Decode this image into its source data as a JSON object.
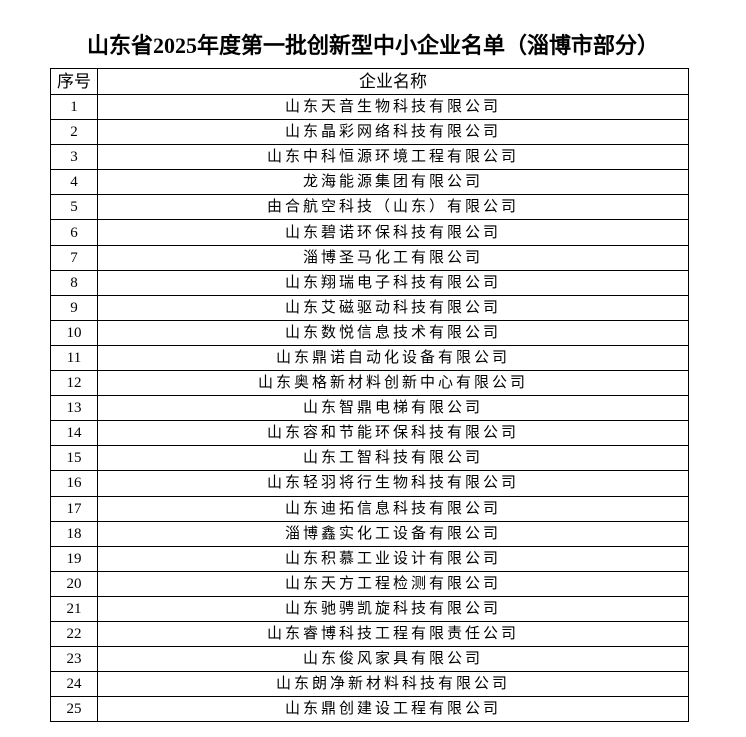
{
  "title": "山东省2025年度第一批创新型中小企业名单（淄博市部分）",
  "table": {
    "headers": [
      "序号",
      "企业名称"
    ],
    "rows": [
      {
        "no": "1",
        "name": "山东天音生物科技有限公司"
      },
      {
        "no": "2",
        "name": "山东晶彩网络科技有限公司"
      },
      {
        "no": "3",
        "name": "山东中科恒源环境工程有限公司"
      },
      {
        "no": "4",
        "name": "龙海能源集团有限公司"
      },
      {
        "no": "5",
        "name": "由合航空科技（山东）有限公司"
      },
      {
        "no": "6",
        "name": "山东碧诺环保科技有限公司"
      },
      {
        "no": "7",
        "name": "淄博圣马化工有限公司"
      },
      {
        "no": "8",
        "name": "山东翔瑞电子科技有限公司"
      },
      {
        "no": "9",
        "name": "山东艾磁驱动科技有限公司"
      },
      {
        "no": "10",
        "name": "山东数悦信息技术有限公司"
      },
      {
        "no": "11",
        "name": "山东鼎诺自动化设备有限公司"
      },
      {
        "no": "12",
        "name": "山东奥格新材料创新中心有限公司"
      },
      {
        "no": "13",
        "name": "山东智鼎电梯有限公司"
      },
      {
        "no": "14",
        "name": "山东容和节能环保科技有限公司"
      },
      {
        "no": "15",
        "name": "山东工智科技有限公司"
      },
      {
        "no": "16",
        "name": "山东轻羽将行生物科技有限公司"
      },
      {
        "no": "17",
        "name": "山东迪拓信息科技有限公司"
      },
      {
        "no": "18",
        "name": "淄博鑫实化工设备有限公司"
      },
      {
        "no": "19",
        "name": "山东积慕工业设计有限公司"
      },
      {
        "no": "20",
        "name": "山东天方工程检测有限公司"
      },
      {
        "no": "21",
        "name": "山东驰骋凯旋科技有限公司"
      },
      {
        "no": "22",
        "name": "山东睿博科技工程有限责任公司"
      },
      {
        "no": "23",
        "name": "山东俊风家具有限公司"
      },
      {
        "no": "24",
        "name": "山东朗净新材料科技有限公司"
      },
      {
        "no": "25",
        "name": "山东鼎创建设工程有限公司"
      }
    ]
  }
}
